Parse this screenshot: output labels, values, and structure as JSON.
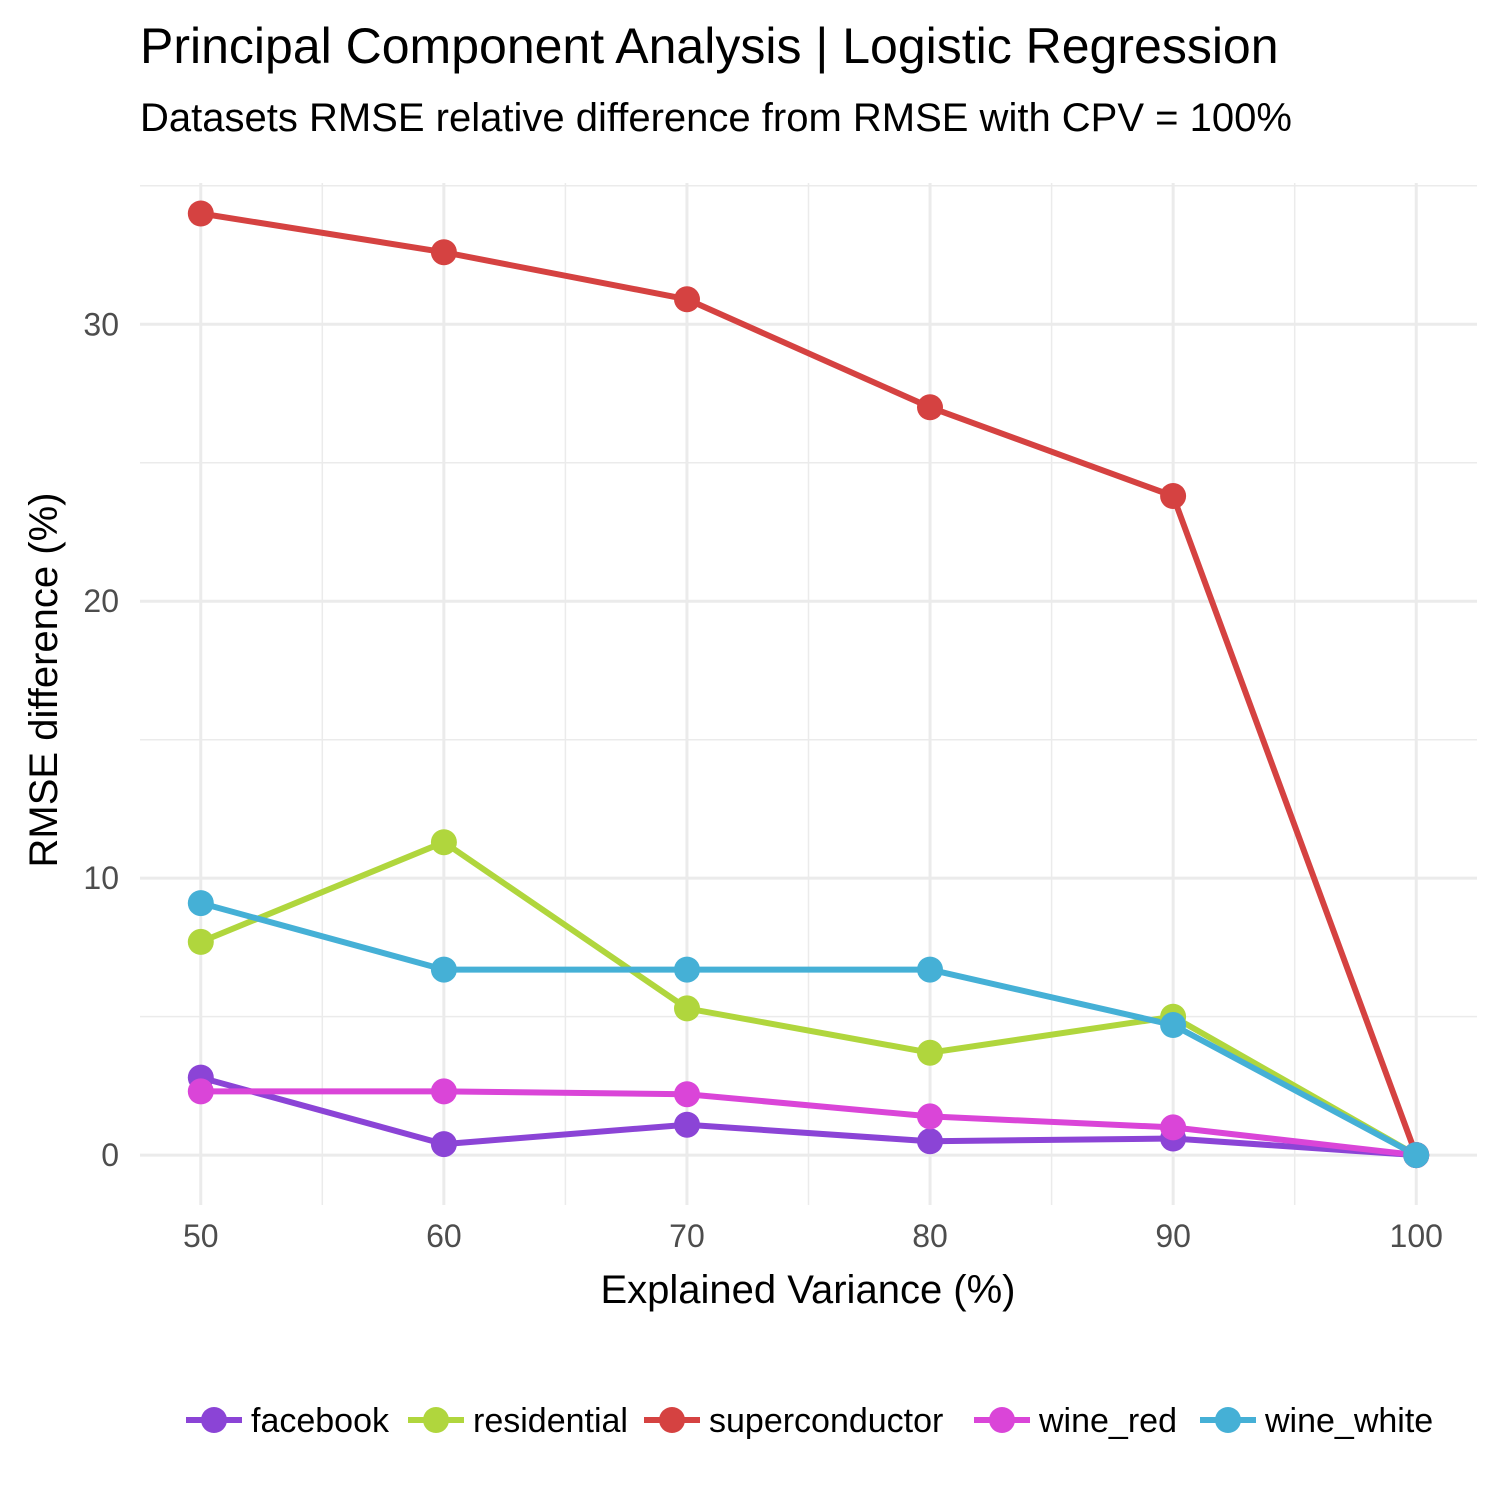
{
  "chart_data": {
    "type": "line",
    "title": "Principal Component Analysis | Logistic Regression",
    "subtitle": "Datasets RMSE relative difference from RMSE with CPV = 100%",
    "xlabel": "Explained Variance (%)",
    "ylabel": "RMSE difference (%)",
    "x": [
      50,
      60,
      70,
      80,
      90,
      100
    ],
    "x_ticks": [
      50,
      60,
      70,
      80,
      90,
      100
    ],
    "y_ticks": [
      0,
      10,
      20,
      30
    ],
    "xlim": [
      47.5,
      102.5
    ],
    "ylim": [
      -1.8,
      35.1
    ],
    "grid": true,
    "legend_position": "bottom",
    "series": [
      {
        "name": "facebook",
        "color": "#8b44d6",
        "values": [
          2.8,
          0.4,
          1.1,
          0.5,
          0.6,
          0
        ]
      },
      {
        "name": "residential",
        "color": "#b0d63d",
        "values": [
          7.7,
          11.3,
          5.3,
          3.7,
          5.0,
          0
        ]
      },
      {
        "name": "superconductor",
        "color": "#d54241",
        "values": [
          34.0,
          32.6,
          30.9,
          27.0,
          23.8,
          0
        ]
      },
      {
        "name": "wine_red",
        "color": "#da45d8",
        "values": [
          2.3,
          2.3,
          2.2,
          1.4,
          1.0,
          0
        ]
      },
      {
        "name": "wine_white",
        "color": "#45b0d6",
        "values": [
          9.1,
          6.7,
          6.7,
          6.7,
          4.7,
          0
        ]
      }
    ]
  }
}
